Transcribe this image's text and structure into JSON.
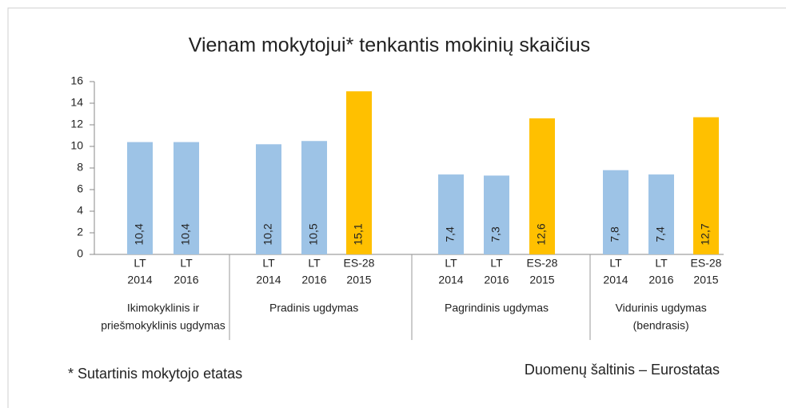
{
  "chart_data": {
    "type": "grouped-bar",
    "title": "Vienam mokytojui* tenkantis mokinių skaičius",
    "ylim": [
      0,
      16
    ],
    "yticks": [
      0,
      2,
      4,
      6,
      8,
      10,
      12,
      14,
      16
    ],
    "groups": [
      {
        "label": [
          "Ikimokyklinis ir",
          "priešmokyklinis ugdymas"
        ],
        "categories": [
          [
            "LT",
            "2014"
          ],
          [
            "LT",
            "2016"
          ]
        ],
        "values": [
          10.4,
          10.4
        ],
        "value_labels": [
          "10,4",
          "10,4"
        ],
        "colors": [
          "#9dc3e6",
          "#9dc3e6"
        ]
      },
      {
        "label": [
          "Pradinis ugdymas"
        ],
        "categories": [
          [
            "LT",
            "2014"
          ],
          [
            "LT",
            "2016"
          ],
          [
            "ES-28",
            "2015"
          ]
        ],
        "values": [
          10.2,
          10.5,
          15.1
        ],
        "value_labels": [
          "10,2",
          "10,5",
          "15,1"
        ],
        "colors": [
          "#9dc3e6",
          "#9dc3e6",
          "#ffc000"
        ]
      },
      {
        "label": [
          "Pagrindinis ugdymas"
        ],
        "categories": [
          [
            "LT",
            "2014"
          ],
          [
            "LT",
            "2016"
          ],
          [
            "ES-28",
            "2015"
          ]
        ],
        "values": [
          7.4,
          7.3,
          12.6
        ],
        "value_labels": [
          "7,4",
          "7,3",
          "12,6"
        ],
        "colors": [
          "#9dc3e6",
          "#9dc3e6",
          "#ffc000"
        ]
      },
      {
        "label": [
          "Vidurinis ugdymas",
          "(bendrasis)"
        ],
        "categories": [
          [
            "LT",
            "2014"
          ],
          [
            "LT",
            "2016"
          ],
          [
            "ES-28",
            "2015"
          ]
        ],
        "values": [
          7.8,
          7.4,
          12.7
        ],
        "value_labels": [
          "7,8",
          "7,4",
          "12,7"
        ],
        "colors": [
          "#9dc3e6",
          "#9dc3e6",
          "#ffc000"
        ]
      }
    ],
    "notes": [
      "* Sutartinis mokytojo etatas",
      "Duomenų šaltinis – Eurostatas"
    ]
  }
}
